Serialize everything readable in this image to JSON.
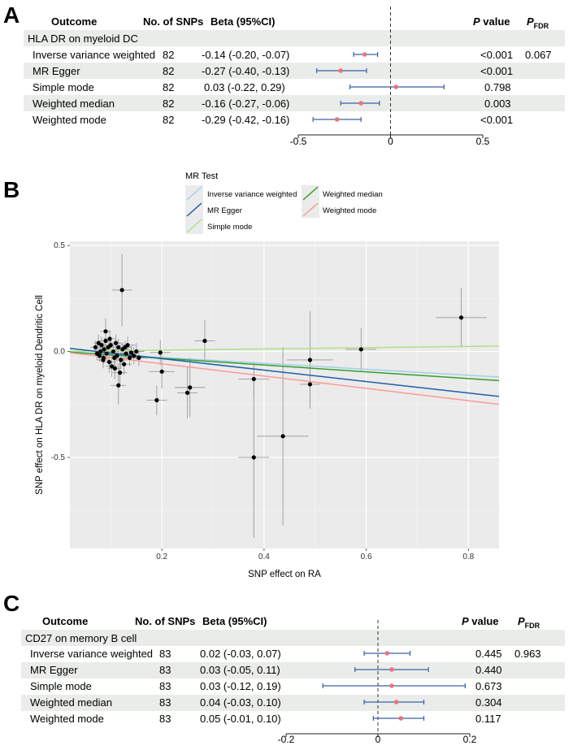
{
  "panel_a": {
    "letter": "A",
    "header": {
      "outcome": "Outcome",
      "n_snps": "No. of SNPs",
      "beta": "Beta (95%CI)",
      "p_value": "P value",
      "p_fdr": "P",
      "p_fdr_sub": "FDR"
    },
    "group_title": "HLA DR on myeloid DC",
    "rows": [
      {
        "method": "Inverse variance weighted",
        "n": "82",
        "beta_text": "-0.14 (-0.20, -0.07)",
        "p": "<0.001",
        "fdr": "0.067"
      },
      {
        "method": "MR Egger",
        "n": "82",
        "beta_text": "-0.27 (-0.40, -0.13)",
        "p": "<0.001",
        "fdr": ""
      },
      {
        "method": "Simple mode",
        "n": "82",
        "beta_text": "0.03 (-0.22,  0.29)",
        "p": "0.798",
        "fdr": ""
      },
      {
        "method": "Weighted median",
        "n": "82",
        "beta_text": "-0.16 (-0.27, -0.06)",
        "p": "0.003",
        "fdr": ""
      },
      {
        "method": "Weighted mode",
        "n": "82",
        "beta_text": "-0.29 (-0.42, -0.16)",
        "p": "<0.001",
        "fdr": ""
      }
    ],
    "axis_ticks": [
      "-0.5",
      "0",
      "0.5"
    ]
  },
  "panel_b": {
    "letter": "B",
    "legend_title": "MR Test",
    "legend": [
      "Inverse variance weighted",
      "Weighted median",
      "MR Egger",
      "Weighted mode",
      "Simple mode"
    ],
    "colors": {
      "Inverse variance weighted": "#a6cee3",
      "MR Egger": "#1f5fa8",
      "Simple mode": "#b2df8a",
      "Weighted median": "#33a02c",
      "Weighted mode": "#fb9a99"
    }
  },
  "panel_c": {
    "letter": "C",
    "header": {
      "outcome": "Outcome",
      "n_snps": "No. of SNPs",
      "beta": "Beta (95%CI)",
      "p_value": "P value",
      "p_fdr": "P",
      "p_fdr_sub": "FDR"
    },
    "group_title": "CD27 on memory B cell",
    "rows": [
      {
        "method": "Inverse variance weighted",
        "n": "83",
        "beta_text": "0.02 (-0.03, 0.07)",
        "p": "0.445",
        "fdr": "0.963"
      },
      {
        "method": "MR Egger",
        "n": "83",
        "beta_text": "0.03 (-0.05, 0.11)",
        "p": "0.440",
        "fdr": ""
      },
      {
        "method": "Simple mode",
        "n": "83",
        "beta_text": "0.03 (-0.12, 0.19)",
        "p": "0.673",
        "fdr": ""
      },
      {
        "method": "Weighted median",
        "n": "83",
        "beta_text": "0.04 (-0.03, 0.10)",
        "p": "0.304",
        "fdr": ""
      },
      {
        "method": "Weighted mode",
        "n": "83",
        "beta_text": "0.05 (-0.01, 0.10)",
        "p": "0.117",
        "fdr": ""
      }
    ],
    "axis_ticks": [
      "-0.2",
      "0",
      "0.2"
    ]
  },
  "chart_data": [
    {
      "type": "forest",
      "panel": "A",
      "title": "HLA DR on myeloid DC",
      "categories": [
        "Inverse variance weighted",
        "MR Egger",
        "Simple mode",
        "Weighted median",
        "Weighted mode"
      ],
      "estimates": [
        -0.14,
        -0.27,
        0.03,
        -0.16,
        -0.29
      ],
      "lower": [
        -0.2,
        -0.4,
        -0.22,
        -0.27,
        -0.42
      ],
      "upper": [
        -0.07,
        -0.13,
        0.29,
        -0.06,
        -0.16
      ],
      "xlim": [
        -0.5,
        0.5
      ],
      "xticks": [
        -0.5,
        0,
        0.5
      ],
      "reference_line": 0
    },
    {
      "type": "scatter",
      "panel": "B",
      "xlabel": "SNP effect on RA",
      "ylabel": "SNP effect on HLA DR on myeloid Dendritic Cell",
      "xlim": [
        0.02,
        0.86
      ],
      "ylim": [
        -0.93,
        0.52
      ],
      "xticks": [
        0.2,
        0.4,
        0.6,
        0.8
      ],
      "yticks": [
        -0.5,
        0.0,
        0.5
      ],
      "xtick_labels": [
        "0.2",
        "0.4",
        "0.6",
        "0.8"
      ],
      "ytick_labels": [
        "-0.5",
        "0.0",
        "0.5"
      ],
      "points": [
        {
          "x": 0.786,
          "y": 0.16,
          "xe": 0.05,
          "ye": 0.14
        },
        {
          "x": 0.59,
          "y": 0.01,
          "xe": 0.03,
          "ye": 0.1
        },
        {
          "x": 0.49,
          "y": -0.04,
          "xe": 0.045,
          "ye": 0.23
        },
        {
          "x": 0.49,
          "y": -0.155,
          "xe": 0.02,
          "ye": 0.1
        },
        {
          "x": 0.437,
          "y": -0.4,
          "xe": 0.05,
          "ye": 0.42
        },
        {
          "x": 0.38,
          "y": -0.5,
          "xe": 0.03,
          "ye": 0.38
        },
        {
          "x": 0.38,
          "y": -0.13,
          "xe": 0.03,
          "ye": 0.08
        },
        {
          "x": 0.284,
          "y": 0.05,
          "xe": 0.02,
          "ye": 0.1
        },
        {
          "x": 0.255,
          "y": -0.17,
          "xe": 0.03,
          "ye": 0.14
        },
        {
          "x": 0.25,
          "y": -0.195,
          "xe": 0.02,
          "ye": 0.12
        },
        {
          "x": 0.2,
          "y": -0.095,
          "xe": 0.025,
          "ye": 0.08
        },
        {
          "x": 0.197,
          "y": -0.005,
          "xe": 0.02,
          "ye": 0.06
        },
        {
          "x": 0.19,
          "y": -0.23,
          "xe": 0.02,
          "ye": 0.07
        },
        {
          "x": 0.122,
          "y": 0.29,
          "xe": 0.02,
          "ye": 0.17
        },
        {
          "x": 0.115,
          "y": -0.16,
          "xe": 0.015,
          "ye": 0.09
        },
        {
          "x": 0.09,
          "y": 0.095,
          "xe": 0.01,
          "ye": 0.06
        },
        {
          "x": 0.07,
          "y": 0.02,
          "xe": 0.01,
          "ye": 0.03
        },
        {
          "x": 0.073,
          "y": -0.01,
          "xe": 0.01,
          "ye": 0.03
        },
        {
          "x": 0.076,
          "y": 0.04,
          "xe": 0.01,
          "ye": 0.04
        },
        {
          "x": 0.078,
          "y": -0.02,
          "xe": 0.01,
          "ye": 0.03
        },
        {
          "x": 0.08,
          "y": 0.0,
          "xe": 0.01,
          "ye": 0.03
        },
        {
          "x": 0.082,
          "y": 0.03,
          "xe": 0.01,
          "ye": 0.04
        },
        {
          "x": 0.085,
          "y": -0.04,
          "xe": 0.012,
          "ye": 0.04
        },
        {
          "x": 0.087,
          "y": 0.01,
          "xe": 0.01,
          "ye": 0.03
        },
        {
          "x": 0.09,
          "y": 0.05,
          "xe": 0.012,
          "ye": 0.04
        },
        {
          "x": 0.092,
          "y": -0.01,
          "xe": 0.01,
          "ye": 0.03
        },
        {
          "x": 0.095,
          "y": 0.02,
          "xe": 0.012,
          "ye": 0.03
        },
        {
          "x": 0.097,
          "y": -0.05,
          "xe": 0.012,
          "ye": 0.05
        },
        {
          "x": 0.1,
          "y": 0.03,
          "xe": 0.012,
          "ye": 0.04
        },
        {
          "x": 0.102,
          "y": -0.07,
          "xe": 0.013,
          "ye": 0.05
        },
        {
          "x": 0.105,
          "y": 0.0,
          "xe": 0.012,
          "ye": 0.03
        },
        {
          "x": 0.107,
          "y": -0.03,
          "xe": 0.013,
          "ye": 0.04
        },
        {
          "x": 0.11,
          "y": 0.04,
          "xe": 0.013,
          "ye": 0.04
        },
        {
          "x": 0.112,
          "y": -0.02,
          "xe": 0.013,
          "ye": 0.03
        },
        {
          "x": 0.115,
          "y": 0.02,
          "xe": 0.013,
          "ye": 0.04
        },
        {
          "x": 0.118,
          "y": -0.1,
          "xe": 0.014,
          "ye": 0.06
        },
        {
          "x": 0.12,
          "y": -0.04,
          "xe": 0.014,
          "ye": 0.04
        },
        {
          "x": 0.123,
          "y": 0.01,
          "xe": 0.014,
          "ye": 0.03
        },
        {
          "x": 0.126,
          "y": -0.06,
          "xe": 0.015,
          "ye": 0.05
        },
        {
          "x": 0.13,
          "y": -0.01,
          "xe": 0.015,
          "ye": 0.03
        },
        {
          "x": 0.133,
          "y": 0.03,
          "xe": 0.015,
          "ye": 0.04
        },
        {
          "x": 0.137,
          "y": -0.03,
          "xe": 0.015,
          "ye": 0.04
        },
        {
          "x": 0.14,
          "y": -0.005,
          "xe": 0.016,
          "ye": 0.03
        },
        {
          "x": 0.145,
          "y": -0.02,
          "xe": 0.016,
          "ye": 0.04
        },
        {
          "x": 0.15,
          "y": 0.0,
          "xe": 0.016,
          "ye": 0.04
        },
        {
          "x": 0.155,
          "y": -0.03,
          "xe": 0.016,
          "ye": 0.04
        },
        {
          "x": 0.108,
          "y": -0.08,
          "xe": 0.013,
          "ye": 0.05
        },
        {
          "x": 0.098,
          "y": 0.06,
          "xe": 0.012,
          "ye": 0.04
        },
        {
          "x": 0.086,
          "y": -0.03,
          "xe": 0.01,
          "ye": 0.03
        },
        {
          "x": 0.128,
          "y": 0.02,
          "xe": 0.014,
          "ye": 0.03
        }
      ],
      "lines": [
        {
          "name": "Inverse variance weighted",
          "intercept": 0,
          "slope": -0.14
        },
        {
          "name": "MR Egger",
          "intercept": 0.02,
          "slope": -0.27
        },
        {
          "name": "Simple mode",
          "intercept": 0,
          "slope": 0.03
        },
        {
          "name": "Weighted median",
          "intercept": 0,
          "slope": -0.16
        },
        {
          "name": "Weighted mode",
          "intercept": 0,
          "slope": -0.29
        }
      ]
    },
    {
      "type": "forest",
      "panel": "C",
      "title": "CD27 on memory B cell",
      "categories": [
        "Inverse variance weighted",
        "MR Egger",
        "Simple mode",
        "Weighted median",
        "Weighted mode"
      ],
      "estimates": [
        0.02,
        0.03,
        0.03,
        0.04,
        0.05
      ],
      "lower": [
        -0.03,
        -0.05,
        -0.12,
        -0.03,
        -0.01
      ],
      "upper": [
        0.07,
        0.11,
        0.19,
        0.1,
        0.1
      ],
      "xlim": [
        -0.2,
        0.2
      ],
      "xticks": [
        -0.2,
        0,
        0.2
      ],
      "reference_line": 0
    }
  ]
}
